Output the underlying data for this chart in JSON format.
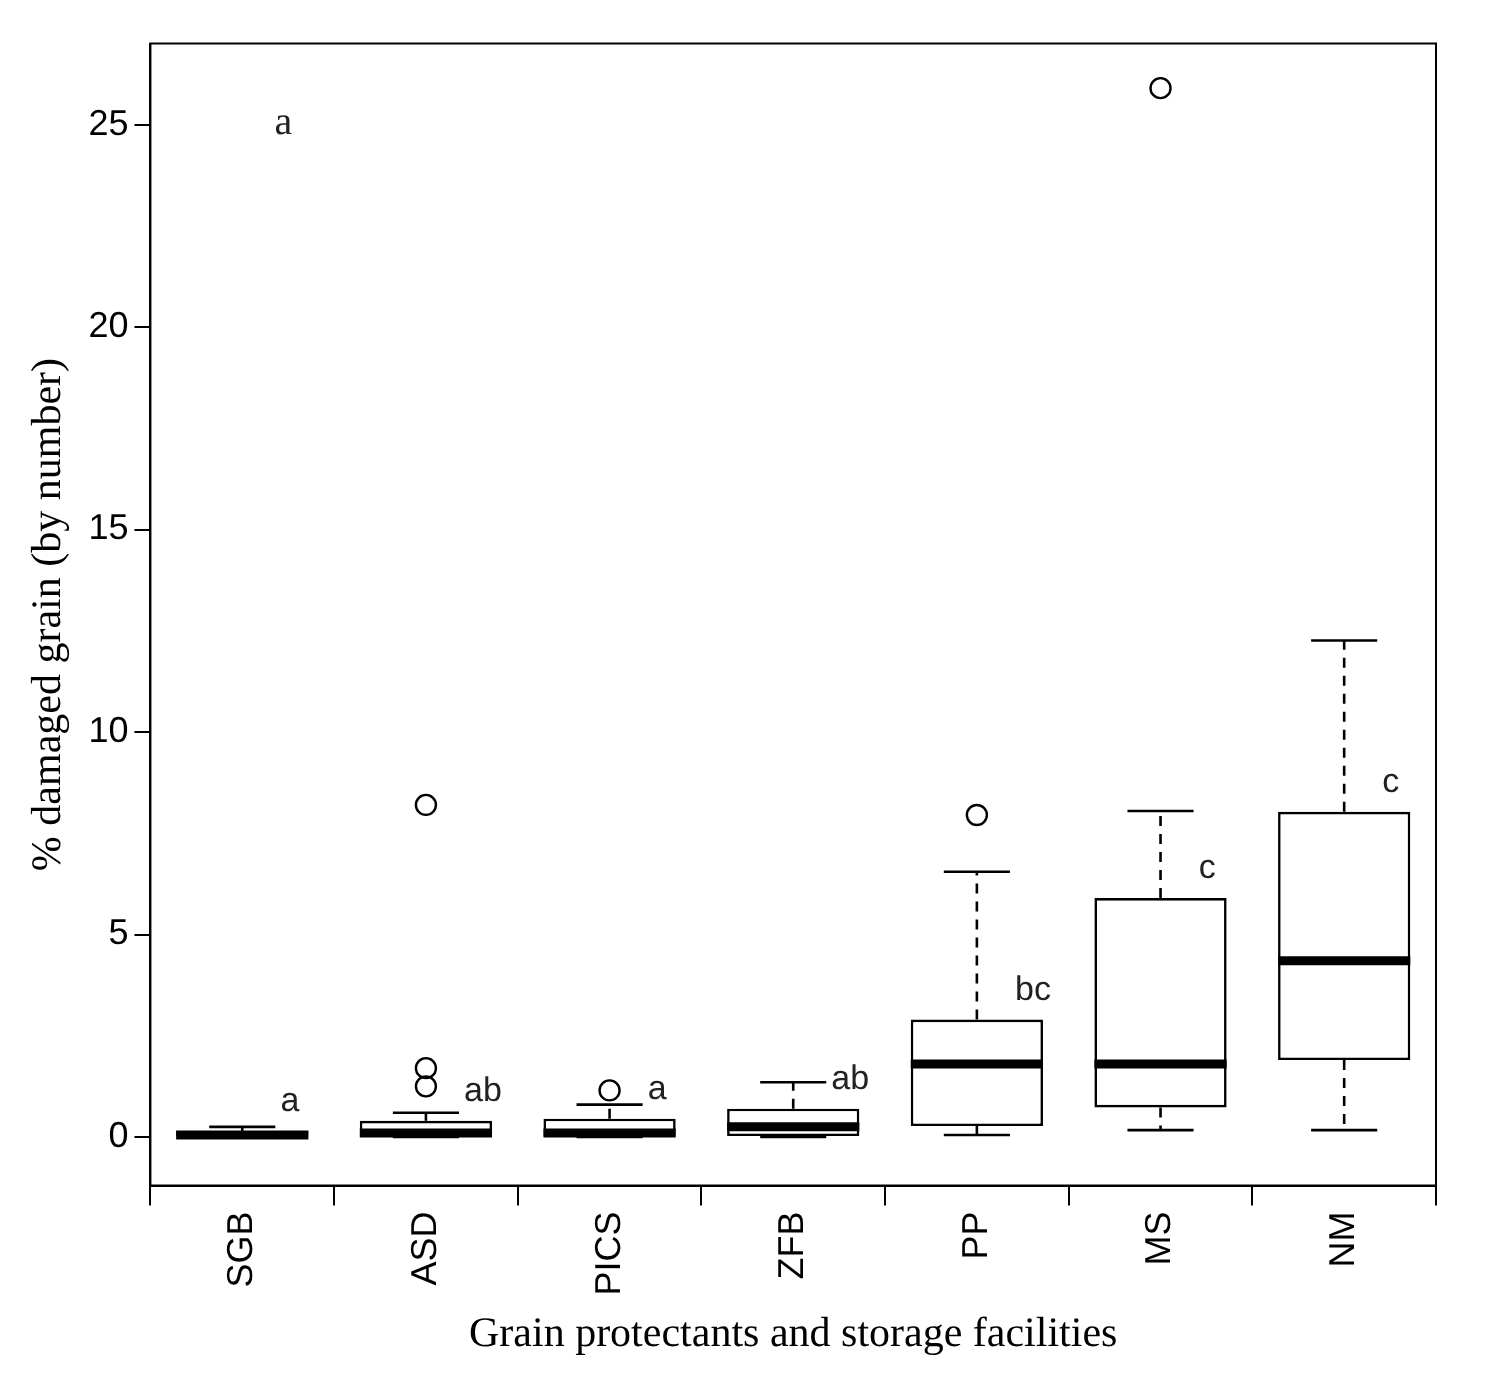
{
  "chart_data": {
    "type": "box",
    "xlabel": "Grain protectants and storage facilities",
    "ylabel": "% damaged grain (by number)",
    "categories": [
      "SGB",
      "ASD",
      "PICS",
      "ZFB",
      "PP",
      "MS",
      "NM"
    ],
    "boxes": [
      {
        "low": 0,
        "q1": 0,
        "median": 0.05,
        "q3": 0.15,
        "high": 0.25
      },
      {
        "low": 0,
        "q1": 0,
        "median": 0.1,
        "q3": 0.4,
        "high": 0.6,
        "outliers": [
          1.25,
          1.7,
          8.2
        ]
      },
      {
        "low": 0,
        "q1": 0,
        "median": 0.1,
        "q3": 0.45,
        "high": 0.8,
        "outliers": [
          1.15
        ]
      },
      {
        "low": 0,
        "q1": 0,
        "median": 0.25,
        "q3": 0.7,
        "high": 1.35
      },
      {
        "low": 0.05,
        "q1": 0.27,
        "median": 1.8,
        "q3": 2.9,
        "high": 6.55,
        "outliers": [
          7.95
        ]
      },
      {
        "low": 0.17,
        "q1": 0.73,
        "median": 1.8,
        "q3": 5.9,
        "high": 8.05,
        "outliers": [
          25.9
        ]
      },
      {
        "low": 0.17,
        "q1": 1.9,
        "median": 4.35,
        "q3": 8.03,
        "high": 12.26
      }
    ],
    "ylim": [
      -1.2,
      27
    ],
    "yticks": [
      0,
      5,
      10,
      15,
      20,
      25
    ],
    "grid": false,
    "legend": false,
    "annotations": [
      "a",
      "a",
      "ab",
      "a",
      "ab",
      "bc",
      "c",
      "c"
    ]
  }
}
